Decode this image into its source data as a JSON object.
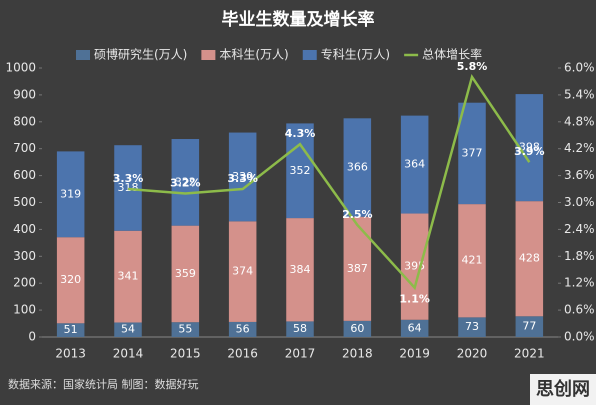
{
  "chart_data": {
    "type": "bar",
    "stacked": true,
    "title": "毕业生数量及增长率",
    "categories": [
      "2013",
      "2014",
      "2015",
      "2016",
      "2017",
      "2018",
      "2019",
      "2020",
      "2021"
    ],
    "series": [
      {
        "name": "硕博研究生(万人)",
        "color": "#4f7196",
        "values": [
          51,
          54,
          55,
          56,
          58,
          60,
          64,
          73,
          77
        ]
      },
      {
        "name": "本科生(万人)",
        "color": "#d4918b",
        "values": [
          320,
          341,
          359,
          374,
          384,
          387,
          395,
          421,
          428
        ]
      },
      {
        "name": "专科生(万人)",
        "color": "#4c74ad",
        "values": [
          319,
          318,
          322,
          330,
          352,
          366,
          364,
          377,
          398
        ]
      },
      {
        "name": "总体增长率",
        "color": "#8dbb4a",
        "type": "line",
        "axis": "y2",
        "values": [
          null,
          3.3,
          3.2,
          3.3,
          4.3,
          2.5,
          1.1,
          5.8,
          3.9
        ],
        "value_labels": [
          null,
          "3.3%",
          "3.2%",
          "3.3%",
          "4.3%",
          "2.5%",
          "1.1%",
          "5.8%",
          "3.9%"
        ]
      }
    ],
    "ylim": [
      0,
      1000
    ],
    "yticks": [
      0,
      100,
      200,
      300,
      400,
      500,
      600,
      700,
      800,
      900,
      1000
    ],
    "y2lim": [
      0,
      6
    ],
    "y2ticks": [
      {
        "value": 0,
        "label": "0.0%"
      },
      {
        "value": 0.6,
        "label": "0.6%"
      },
      {
        "value": 1.2,
        "label": "1.2%"
      },
      {
        "value": 1.8,
        "label": "1.8%"
      },
      {
        "value": 2.4,
        "label": "2.4%"
      },
      {
        "value": 3.0,
        "label": "3.0%"
      },
      {
        "value": 3.6,
        "label": "3.6%"
      },
      {
        "value": 4.2,
        "label": "4.2%"
      },
      {
        "value": 4.8,
        "label": "4.8%"
      },
      {
        "value": 5.4,
        "label": "5.4%"
      },
      {
        "value": 6.0,
        "label": "6.0%"
      }
    ],
    "legend": "top",
    "footer": "数据来源：国家统计局    制图：数据好玩",
    "watermark": "思创网"
  }
}
